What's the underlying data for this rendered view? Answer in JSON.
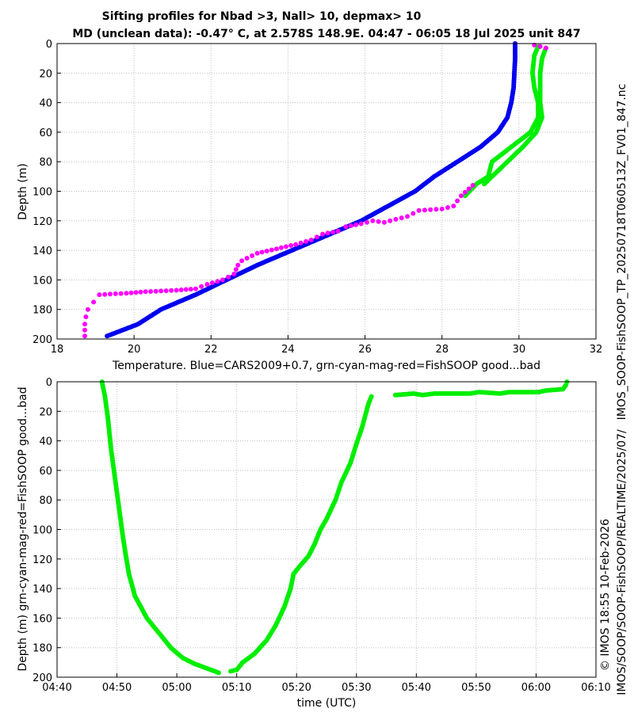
{
  "title_line1": "Sifting profiles for Nbad >3, Nall> 10, depmax> 10",
  "title_line2": "MD (unclean data): -0.47° C, at 2.578S 148.9E. 04:47 - 06:05 18 Jul 2025 unit 847",
  "side_label_right": "IMOS_SOOP-FishSOOP_TP_20250718T060513Z_FV01_847.nc",
  "side_label_bottom": "© IMOS 18:55 10-Feb-2026",
  "side_label_path": "IMOS/SOOP/SOOP-FishSOOP/REALTIME/2025/07/",
  "colors": {
    "cars": "#0000ee",
    "good": "#00ee00",
    "mag": "#ff00ff"
  },
  "chart_data": [
    {
      "type": "scatter",
      "xlabel": "Temperature. Blue=CARS2009+0.7, grn-cyan-mag-red=FishSOOP good...bad",
      "ylabel": "Depth (m)",
      "xlim": [
        18,
        32
      ],
      "ylim": [
        200,
        0
      ],
      "y_reversed": true,
      "xticks": [
        "18",
        "20",
        "22",
        "24",
        "26",
        "28",
        "30",
        "32"
      ],
      "yticks": [
        "0",
        "20",
        "40",
        "60",
        "80",
        "100",
        "120",
        "140",
        "160",
        "180",
        "200"
      ],
      "grid": true,
      "series": [
        {
          "color_key": "cars",
          "points": [
            [
              29.9,
              0
            ],
            [
              29.9,
              10
            ],
            [
              29.88,
              20
            ],
            [
              29.86,
              30
            ],
            [
              29.8,
              40
            ],
            [
              29.7,
              50
            ],
            [
              29.45,
              60
            ],
            [
              29.0,
              70
            ],
            [
              28.4,
              80
            ],
            [
              27.8,
              90
            ],
            [
              27.3,
              100
            ],
            [
              26.6,
              110
            ],
            [
              25.9,
              120
            ],
            [
              25.0,
              130
            ],
            [
              24.1,
              140
            ],
            [
              23.2,
              150
            ],
            [
              22.4,
              160
            ],
            [
              21.6,
              170
            ],
            [
              20.7,
              180
            ],
            [
              20.1,
              190
            ],
            [
              19.3,
              198
            ]
          ]
        },
        {
          "color_key": "good",
          "points": [
            [
              30.5,
              2
            ],
            [
              30.4,
              8
            ],
            [
              30.35,
              20
            ],
            [
              30.4,
              30
            ],
            [
              30.5,
              40
            ],
            [
              30.5,
              50
            ],
            [
              30.3,
              60
            ],
            [
              29.8,
              70
            ],
            [
              29.3,
              80
            ],
            [
              29.2,
              90
            ],
            [
              28.9,
              95
            ],
            [
              28.6,
              103
            ]
          ]
        },
        {
          "color_key": "good",
          "points": [
            [
              30.7,
              3
            ],
            [
              30.6,
              10
            ],
            [
              30.55,
              20
            ],
            [
              30.55,
              30
            ],
            [
              30.55,
              40
            ],
            [
              30.6,
              50
            ],
            [
              30.45,
              60
            ],
            [
              30.1,
              70
            ],
            [
              29.7,
              80
            ],
            [
              29.3,
              90
            ],
            [
              29.1,
              95
            ]
          ]
        },
        {
          "color_key": "mag",
          "points": [
            [
              30.4,
              1
            ],
            [
              30.7,
              3
            ],
            [
              28.8,
              96
            ],
            [
              28.5,
              103
            ],
            [
              28.3,
              110
            ],
            [
              28.0,
              112
            ],
            [
              27.4,
              113
            ],
            [
              27.1,
              117
            ],
            [
              26.8,
              119
            ],
            [
              26.5,
              121
            ],
            [
              26.2,
              120
            ],
            [
              25.9,
              122
            ],
            [
              25.5,
              124
            ],
            [
              25.3,
              127
            ],
            [
              24.9,
              129
            ],
            [
              24.6,
              133
            ],
            [
              24.2,
              136
            ],
            [
              23.7,
              139
            ],
            [
              23.2,
              142
            ],
            [
              22.8,
              147
            ],
            [
              22.7,
              150
            ],
            [
              22.6,
              156
            ],
            [
              22.3,
              160
            ],
            [
              21.9,
              163
            ],
            [
              21.6,
              166
            ],
            [
              21.1,
              167
            ],
            [
              20.3,
              168
            ],
            [
              19.8,
              169
            ],
            [
              19.1,
              170
            ],
            [
              18.95,
              175
            ],
            [
              18.8,
              180
            ],
            [
              18.75,
              185
            ],
            [
              18.72,
              190
            ],
            [
              18.72,
              198
            ]
          ]
        }
      ]
    },
    {
      "type": "scatter",
      "xlabel": "time (UTC)",
      "ylabel": "Depth (m) grn-cyan-mag-red=FishSOOP good...bad",
      "xlim": [
        "04:40",
        "06:10"
      ],
      "ylim": [
        200,
        0
      ],
      "y_reversed": true,
      "xticks": [
        "04:40",
        "04:50",
        "05:00",
        "05:10",
        "05:20",
        "05:30",
        "05:40",
        "05:50",
        "06:00",
        "06:10"
      ],
      "yticks": [
        "0",
        "20",
        "40",
        "60",
        "80",
        "100",
        "120",
        "140",
        "160",
        "180",
        "200"
      ],
      "grid": true,
      "series": [
        {
          "color_key": "good",
          "points": [
            [
              "04:47:30",
              0
            ],
            [
              "04:48:00",
              10
            ],
            [
              "04:48:30",
              25
            ],
            [
              "04:49:00",
              45
            ],
            [
              "04:49:30",
              60
            ],
            [
              "04:50:00",
              75
            ],
            [
              "04:50:30",
              90
            ],
            [
              "04:51:00",
              105
            ],
            [
              "04:51:30",
              118
            ],
            [
              "04:52:00",
              130
            ],
            [
              "04:53:00",
              145
            ],
            [
              "04:55:00",
              160
            ],
            [
              "04:57:00",
              170
            ],
            [
              "04:59:00",
              180
            ],
            [
              "05:01:00",
              187
            ],
            [
              "05:03:00",
              191
            ],
            [
              "05:05:00",
              194
            ],
            [
              "05:07:00",
              197
            ]
          ]
        },
        {
          "color_key": "good",
          "points": [
            [
              "05:09:00",
              196
            ],
            [
              "05:10:00",
              195
            ],
            [
              "05:11:00",
              190
            ],
            [
              "05:13:00",
              184
            ],
            [
              "05:15:00",
              175
            ],
            [
              "05:16:30",
              165
            ],
            [
              "05:18:00",
              152
            ],
            [
              "05:19:00",
              140
            ],
            [
              "05:19:30",
              130
            ],
            [
              "05:20:30",
              125
            ],
            [
              "05:22:00",
              118
            ],
            [
              "05:23:00",
              110
            ],
            [
              "05:24:00",
              100
            ],
            [
              "05:25:00",
              93
            ],
            [
              "05:26:30",
              80
            ],
            [
              "05:27:30",
              68
            ],
            [
              "05:29:00",
              55
            ],
            [
              "05:30:00",
              42
            ],
            [
              "05:31:00",
              30
            ],
            [
              "05:32:00",
              15
            ],
            [
              "05:32:30",
              10
            ]
          ]
        },
        {
          "color_key": "good",
          "points": [
            [
              "05:36:30",
              9
            ],
            [
              "05:39:30",
              8
            ],
            [
              "05:41:00",
              9
            ],
            [
              "05:43:00",
              8
            ],
            [
              "05:49:00",
              8
            ],
            [
              "05:50:30",
              7
            ],
            [
              "05:54:00",
              8
            ],
            [
              "05:55:30",
              7
            ],
            [
              "06:00:30",
              7
            ],
            [
              "06:01:30",
              6
            ],
            [
              "06:04:30",
              5
            ],
            [
              "06:05:00",
              2
            ],
            [
              "06:05:10",
              0
            ]
          ]
        }
      ]
    }
  ]
}
